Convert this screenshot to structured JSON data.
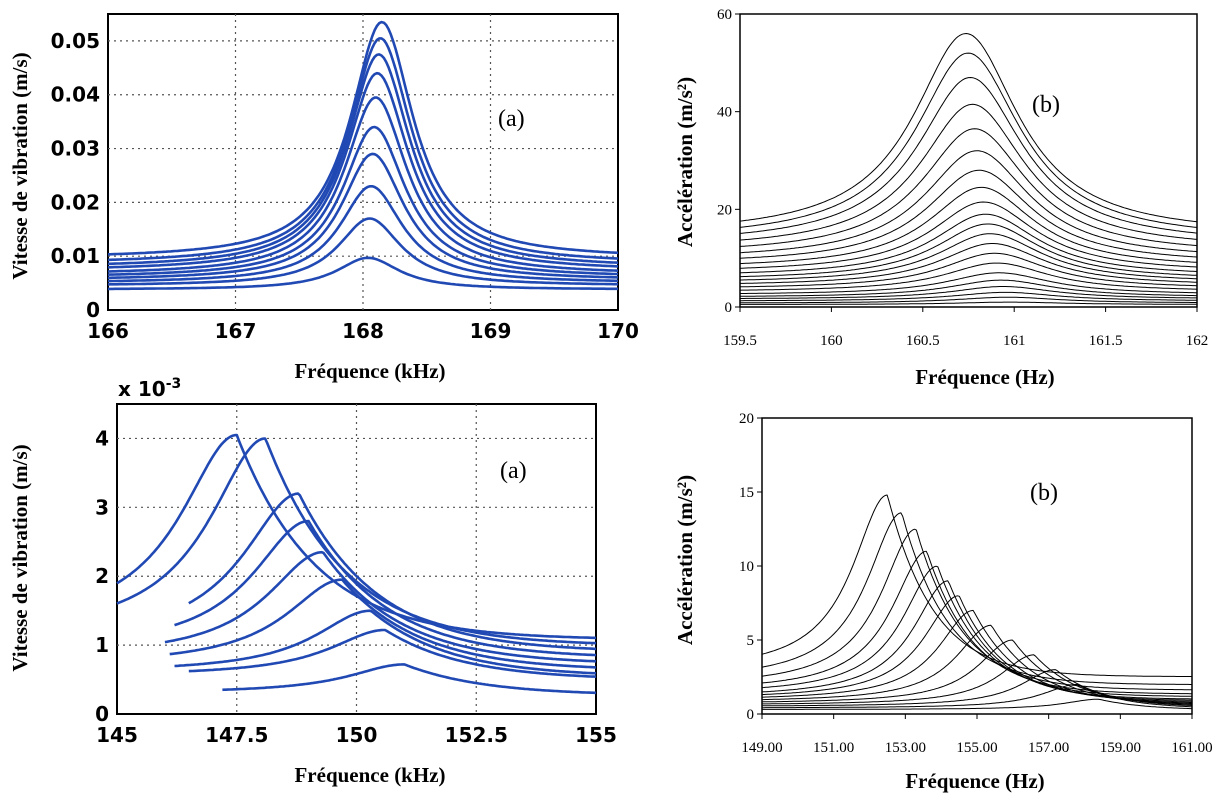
{
  "colors": {
    "blue_series": "#2149b4",
    "black_series": "#000000",
    "grid": "#555555"
  },
  "chart_data": [
    {
      "id": "top-left",
      "type": "line",
      "panel_label": "(a)",
      "xlabel": "Fréquence (kHz)",
      "ylabel": "Vitesse de vibration (m/s)",
      "xlim": [
        166,
        170
      ],
      "ylim": [
        0,
        0.055
      ],
      "xticks": [
        "166",
        "167",
        "168",
        "169",
        "170"
      ],
      "yticks": [
        "0",
        "0.01",
        "0.02",
        "0.03",
        "0.04",
        "0.05"
      ],
      "grid": true,
      "series_shape": {
        "kind": "lorentz",
        "x0": 168.1,
        "x0_shift": 0.012,
        "width": 0.3
      },
      "series": [
        {
          "x_start": 166,
          "x_end": 170,
          "peak": 0.0097,
          "base": 0.0038
        },
        {
          "x_start": 166,
          "x_end": 170,
          "peak": 0.017,
          "base": 0.0045
        },
        {
          "x_start": 166,
          "x_end": 170,
          "peak": 0.023,
          "base": 0.005
        },
        {
          "x_start": 166,
          "x_end": 170,
          "peak": 0.029,
          "base": 0.0055
        },
        {
          "x_start": 166,
          "x_end": 170,
          "peak": 0.034,
          "base": 0.006
        },
        {
          "x_start": 166,
          "x_end": 170,
          "peak": 0.0395,
          "base": 0.0065
        },
        {
          "x_start": 166,
          "x_end": 170,
          "peak": 0.044,
          "base": 0.0072
        },
        {
          "x_start": 166,
          "x_end": 170,
          "peak": 0.0475,
          "base": 0.0078
        },
        {
          "x_start": 166,
          "x_end": 170,
          "peak": 0.0505,
          "base": 0.0085
        },
        {
          "x_start": 166,
          "x_end": 170,
          "peak": 0.0535,
          "base": 0.0095
        }
      ]
    },
    {
      "id": "top-right",
      "type": "line",
      "panel_label": "(b)",
      "xlabel": "Fréquence (Hz)",
      "ylabel": "Accélération (m/s²)",
      "xlim": [
        159.5,
        162
      ],
      "ylim": [
        0,
        60
      ],
      "xticks": [
        "159.5",
        "160",
        "160.5",
        "161",
        "161.5",
        "162"
      ],
      "yticks": [
        "0",
        "20",
        "40",
        "60"
      ],
      "grid": false,
      "series_shape": {
        "kind": "lorentz",
        "x0": 160.85,
        "x0_shift": -0.012,
        "width": 0.35
      },
      "series": [
        {
          "x_start": 159.5,
          "x_end": 162,
          "peak": 1.0,
          "base": 0.5
        },
        {
          "x_start": 159.5,
          "x_end": 162,
          "peak": 2.0,
          "base": 0.8
        },
        {
          "x_start": 159.5,
          "x_end": 162,
          "peak": 3.0,
          "base": 1.2
        },
        {
          "x_start": 159.5,
          "x_end": 162,
          "peak": 4.2,
          "base": 1.6
        },
        {
          "x_start": 159.5,
          "x_end": 162,
          "peak": 5.5,
          "base": 2.0
        },
        {
          "x_start": 159.5,
          "x_end": 162,
          "peak": 7.0,
          "base": 2.5
        },
        {
          "x_start": 159.5,
          "x_end": 162,
          "peak": 9.0,
          "base": 3.1
        },
        {
          "x_start": 159.5,
          "x_end": 162,
          "peak": 11.0,
          "base": 3.7
        },
        {
          "x_start": 159.5,
          "x_end": 162,
          "peak": 13.0,
          "base": 4.3
        },
        {
          "x_start": 159.5,
          "x_end": 162,
          "peak": 15.0,
          "base": 4.9
        },
        {
          "x_start": 159.5,
          "x_end": 162,
          "peak": 17.0,
          "base": 5.5
        },
        {
          "x_start": 159.5,
          "x_end": 162,
          "peak": 19.0,
          "base": 6.2
        },
        {
          "x_start": 159.5,
          "x_end": 162,
          "peak": 21.5,
          "base": 7.0
        },
        {
          "x_start": 159.5,
          "x_end": 162,
          "peak": 24.5,
          "base": 7.8
        },
        {
          "x_start": 159.5,
          "x_end": 162,
          "peak": 28.0,
          "base": 8.7
        },
        {
          "x_start": 159.5,
          "x_end": 162,
          "peak": 32.0,
          "base": 9.6
        },
        {
          "x_start": 159.5,
          "x_end": 162,
          "peak": 36.5,
          "base": 10.6
        },
        {
          "x_start": 159.5,
          "x_end": 162,
          "peak": 41.5,
          "base": 11.6
        },
        {
          "x_start": 159.5,
          "x_end": 162,
          "peak": 47.0,
          "base": 12.6
        },
        {
          "x_start": 159.5,
          "x_end": 162,
          "peak": 52.0,
          "base": 13.5
        },
        {
          "x_start": 159.5,
          "x_end": 162,
          "peak": 56.0,
          "base": 14.5
        }
      ]
    },
    {
      "id": "bottom-left",
      "type": "line",
      "panel_label": "(a)",
      "xlabel": "Fréquence (kHz)",
      "ylabel": "Vitesse de vibration (m/s)",
      "exponent_label": "x 10",
      "exponent_power": "-3",
      "xlim": [
        145,
        155
      ],
      "ylim": [
        0,
        4.5
      ],
      "xticks": [
        "145",
        "147.5",
        "150",
        "152.5",
        "155"
      ],
      "yticks": [
        "0",
        "1",
        "2",
        "3",
        "4"
      ],
      "grid": true,
      "series_shape": {
        "kind": "duffing",
        "width_left": 1.8,
        "width_right": 1.4,
        "tail": 3.5
      },
      "series": [
        {
          "x_start": 147.2,
          "x_end": 155,
          "peak": 0.72,
          "peak_x": 151.0,
          "base": 0.3
        },
        {
          "x_start": 146.5,
          "x_end": 155,
          "peak": 1.22,
          "peak_x": 150.6,
          "base": 0.55
        },
        {
          "x_start": 146.2,
          "x_end": 155,
          "peak": 1.5,
          "peak_x": 150.3,
          "base": 0.6
        },
        {
          "x_start": 146.1,
          "x_end": 155,
          "peak": 1.95,
          "peak_x": 149.7,
          "base": 0.7
        },
        {
          "x_start": 146.0,
          "x_end": 155,
          "peak": 2.35,
          "peak_x": 149.3,
          "base": 0.8
        },
        {
          "x_start": 146.2,
          "x_end": 155,
          "peak": 2.8,
          "peak_x": 149.0,
          "base": 0.9
        },
        {
          "x_start": 146.5,
          "x_end": 155,
          "peak": 3.2,
          "peak_x": 148.8,
          "base": 1.0
        },
        {
          "x_start": 145,
          "x_end": 155,
          "peak": 4.0,
          "peak_x": 148.1,
          "base": 1.1
        },
        {
          "x_start": 145,
          "x_end": 155,
          "peak": 4.05,
          "peak_x": 147.5,
          "base": 1.2
        }
      ]
    },
    {
      "id": "bottom-right",
      "type": "line",
      "panel_label": "(b)",
      "xlabel": "Fréquence (Hz)",
      "ylabel": "Accélération (m/s²)",
      "xlim": [
        149,
        161
      ],
      "ylim": [
        0,
        20
      ],
      "xticks": [
        "149.00",
        "151.00",
        "153.00",
        "155.00",
        "157.00",
        "159.00",
        "161.00"
      ],
      "yticks": [
        "0",
        "5",
        "10",
        "15",
        "20"
      ],
      "grid": false,
      "series_shape": {
        "kind": "duffing",
        "width_left": 1.5,
        "width_right": 1.1,
        "tail": 5.5
      },
      "series": [
        {
          "x_start": 149,
          "x_end": 161,
          "peak": 1.0,
          "peak_x": 158.4,
          "base": 0.3
        },
        {
          "x_start": 149,
          "x_end": 161,
          "peak": 2.0,
          "peak_x": 157.8,
          "base": 0.4
        },
        {
          "x_start": 149,
          "x_end": 161,
          "peak": 3.0,
          "peak_x": 157.2,
          "base": 0.5
        },
        {
          "x_start": 149,
          "x_end": 161,
          "peak": 4.0,
          "peak_x": 156.6,
          "base": 0.6
        },
        {
          "x_start": 149,
          "x_end": 161,
          "peak": 5.0,
          "peak_x": 156.0,
          "base": 0.7
        },
        {
          "x_start": 149,
          "x_end": 161,
          "peak": 6.0,
          "peak_x": 155.4,
          "base": 0.8
        },
        {
          "x_start": 149,
          "x_end": 161,
          "peak": 7.0,
          "peak_x": 154.9,
          "base": 0.9
        },
        {
          "x_start": 149,
          "x_end": 161,
          "peak": 8.0,
          "peak_x": 154.5,
          "base": 1.0
        },
        {
          "x_start": 149,
          "x_end": 161,
          "peak": 9.0,
          "peak_x": 154.2,
          "base": 1.1
        },
        {
          "x_start": 149,
          "x_end": 161,
          "peak": 10.0,
          "peak_x": 153.9,
          "base": 1.3
        },
        {
          "x_start": 149,
          "x_end": 161,
          "peak": 11.0,
          "peak_x": 153.6,
          "base": 1.5
        },
        {
          "x_start": 149,
          "x_end": 161,
          "peak": 12.5,
          "peak_x": 153.3,
          "base": 1.8
        },
        {
          "x_start": 149,
          "x_end": 161,
          "peak": 13.6,
          "peak_x": 152.9,
          "base": 2.2
        },
        {
          "x_start": 149,
          "x_end": 161,
          "peak": 14.8,
          "peak_x": 152.5,
          "base": 2.8
        }
      ]
    }
  ]
}
